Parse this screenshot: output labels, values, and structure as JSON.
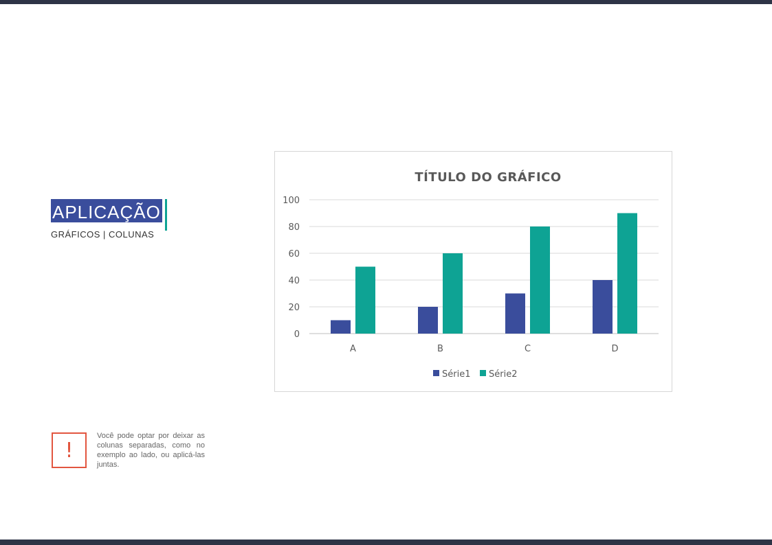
{
  "page": {
    "section_title": "APLICAÇÃO",
    "subtitle": "GRÁFICOS | COLUNAS"
  },
  "note": {
    "icon": "exclamation-icon",
    "text": "Você pode optar por deixar as colunas separadas, como no exemplo ao lado, ou aplicá-las juntas."
  },
  "colors": {
    "serie1": "#3a4d9c",
    "serie2": "#0ea394",
    "accent": "#0ea394",
    "warning": "#e2553f",
    "frame": "#2e3446"
  },
  "chart_data": {
    "type": "bar",
    "title": "TÍTULO DO GRÁFICO",
    "categories": [
      "A",
      "B",
      "C",
      "D"
    ],
    "series": [
      {
        "name": "Série1",
        "values": [
          10,
          20,
          30,
          40
        ]
      },
      {
        "name": "Série2",
        "values": [
          50,
          60,
          80,
          90
        ]
      }
    ],
    "ylim": [
      0,
      100
    ],
    "yticks": [
      0,
      20,
      40,
      60,
      80,
      100
    ],
    "grid": true,
    "legend": "bottom"
  }
}
